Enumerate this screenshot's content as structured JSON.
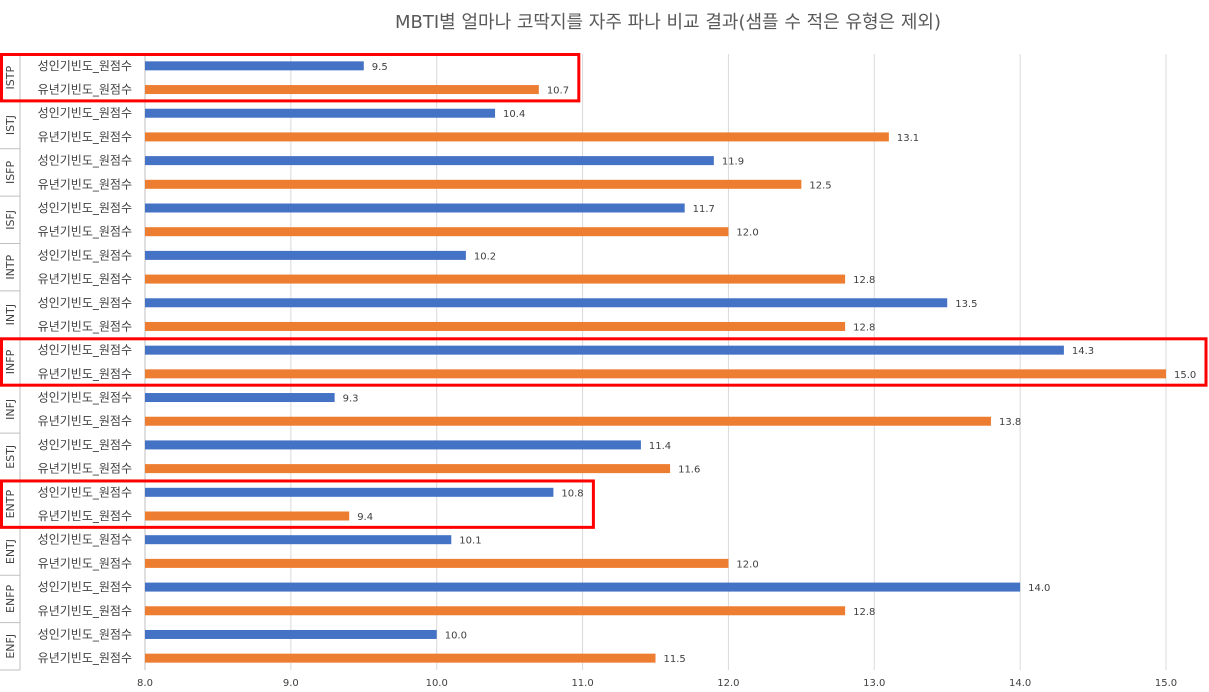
{
  "chart_data": {
    "type": "bar",
    "orientation": "horizontal",
    "title": "MBTI별 얼마나 코딱지를 자주 파나 비교 결과(샘플 수 적은 유형은 제외)",
    "categories": [
      "ISTP",
      "ISTJ",
      "ISFP",
      "ISFJ",
      "INTP",
      "INTJ",
      "INFP",
      "INFJ",
      "ESTJ",
      "ENTP",
      "ENTJ",
      "ENFP",
      "ENFJ"
    ],
    "series": [
      {
        "name": "성인기빈도_원점수",
        "color": "#4472C4",
        "values": [
          9.5,
          10.4,
          11.9,
          11.7,
          10.2,
          13.5,
          14.3,
          9.3,
          11.4,
          10.8,
          10.1,
          14.0,
          10.0
        ],
        "labels": [
          "9.5",
          "10.4",
          "11.9",
          "11.7",
          "10.2",
          "13.5",
          "14.3",
          "9.3",
          "11.4",
          "10.8",
          "10.1",
          "14.0",
          "10.0"
        ]
      },
      {
        "name": "유년기빈도_원점수",
        "color": "#ED7D31",
        "values": [
          10.7,
          13.1,
          12.5,
          12.0,
          12.8,
          12.8,
          15.0,
          13.8,
          11.6,
          9.4,
          12.0,
          12.8,
          11.5
        ],
        "labels": [
          "10.7",
          "13.1",
          "12.5",
          "12.0",
          "12.8",
          "12.8",
          "15.0",
          "13.8",
          "11.6",
          "9.4",
          "12.0",
          "12.8",
          "11.5"
        ]
      }
    ],
    "xlim": [
      8.0,
      15.0
    ],
    "ticks": [
      "8.0",
      "9.0",
      "10.0",
      "11.0",
      "12.0",
      "13.0",
      "14.0",
      "15.0"
    ],
    "grid": true,
    "highlights": [
      {
        "categories": [
          "ISTP"
        ],
        "color": "#FF0000"
      },
      {
        "categories": [
          "INFP"
        ],
        "color": "#FF0000"
      },
      {
        "categories": [
          "ENTP"
        ],
        "color": "#FF0000"
      }
    ]
  }
}
